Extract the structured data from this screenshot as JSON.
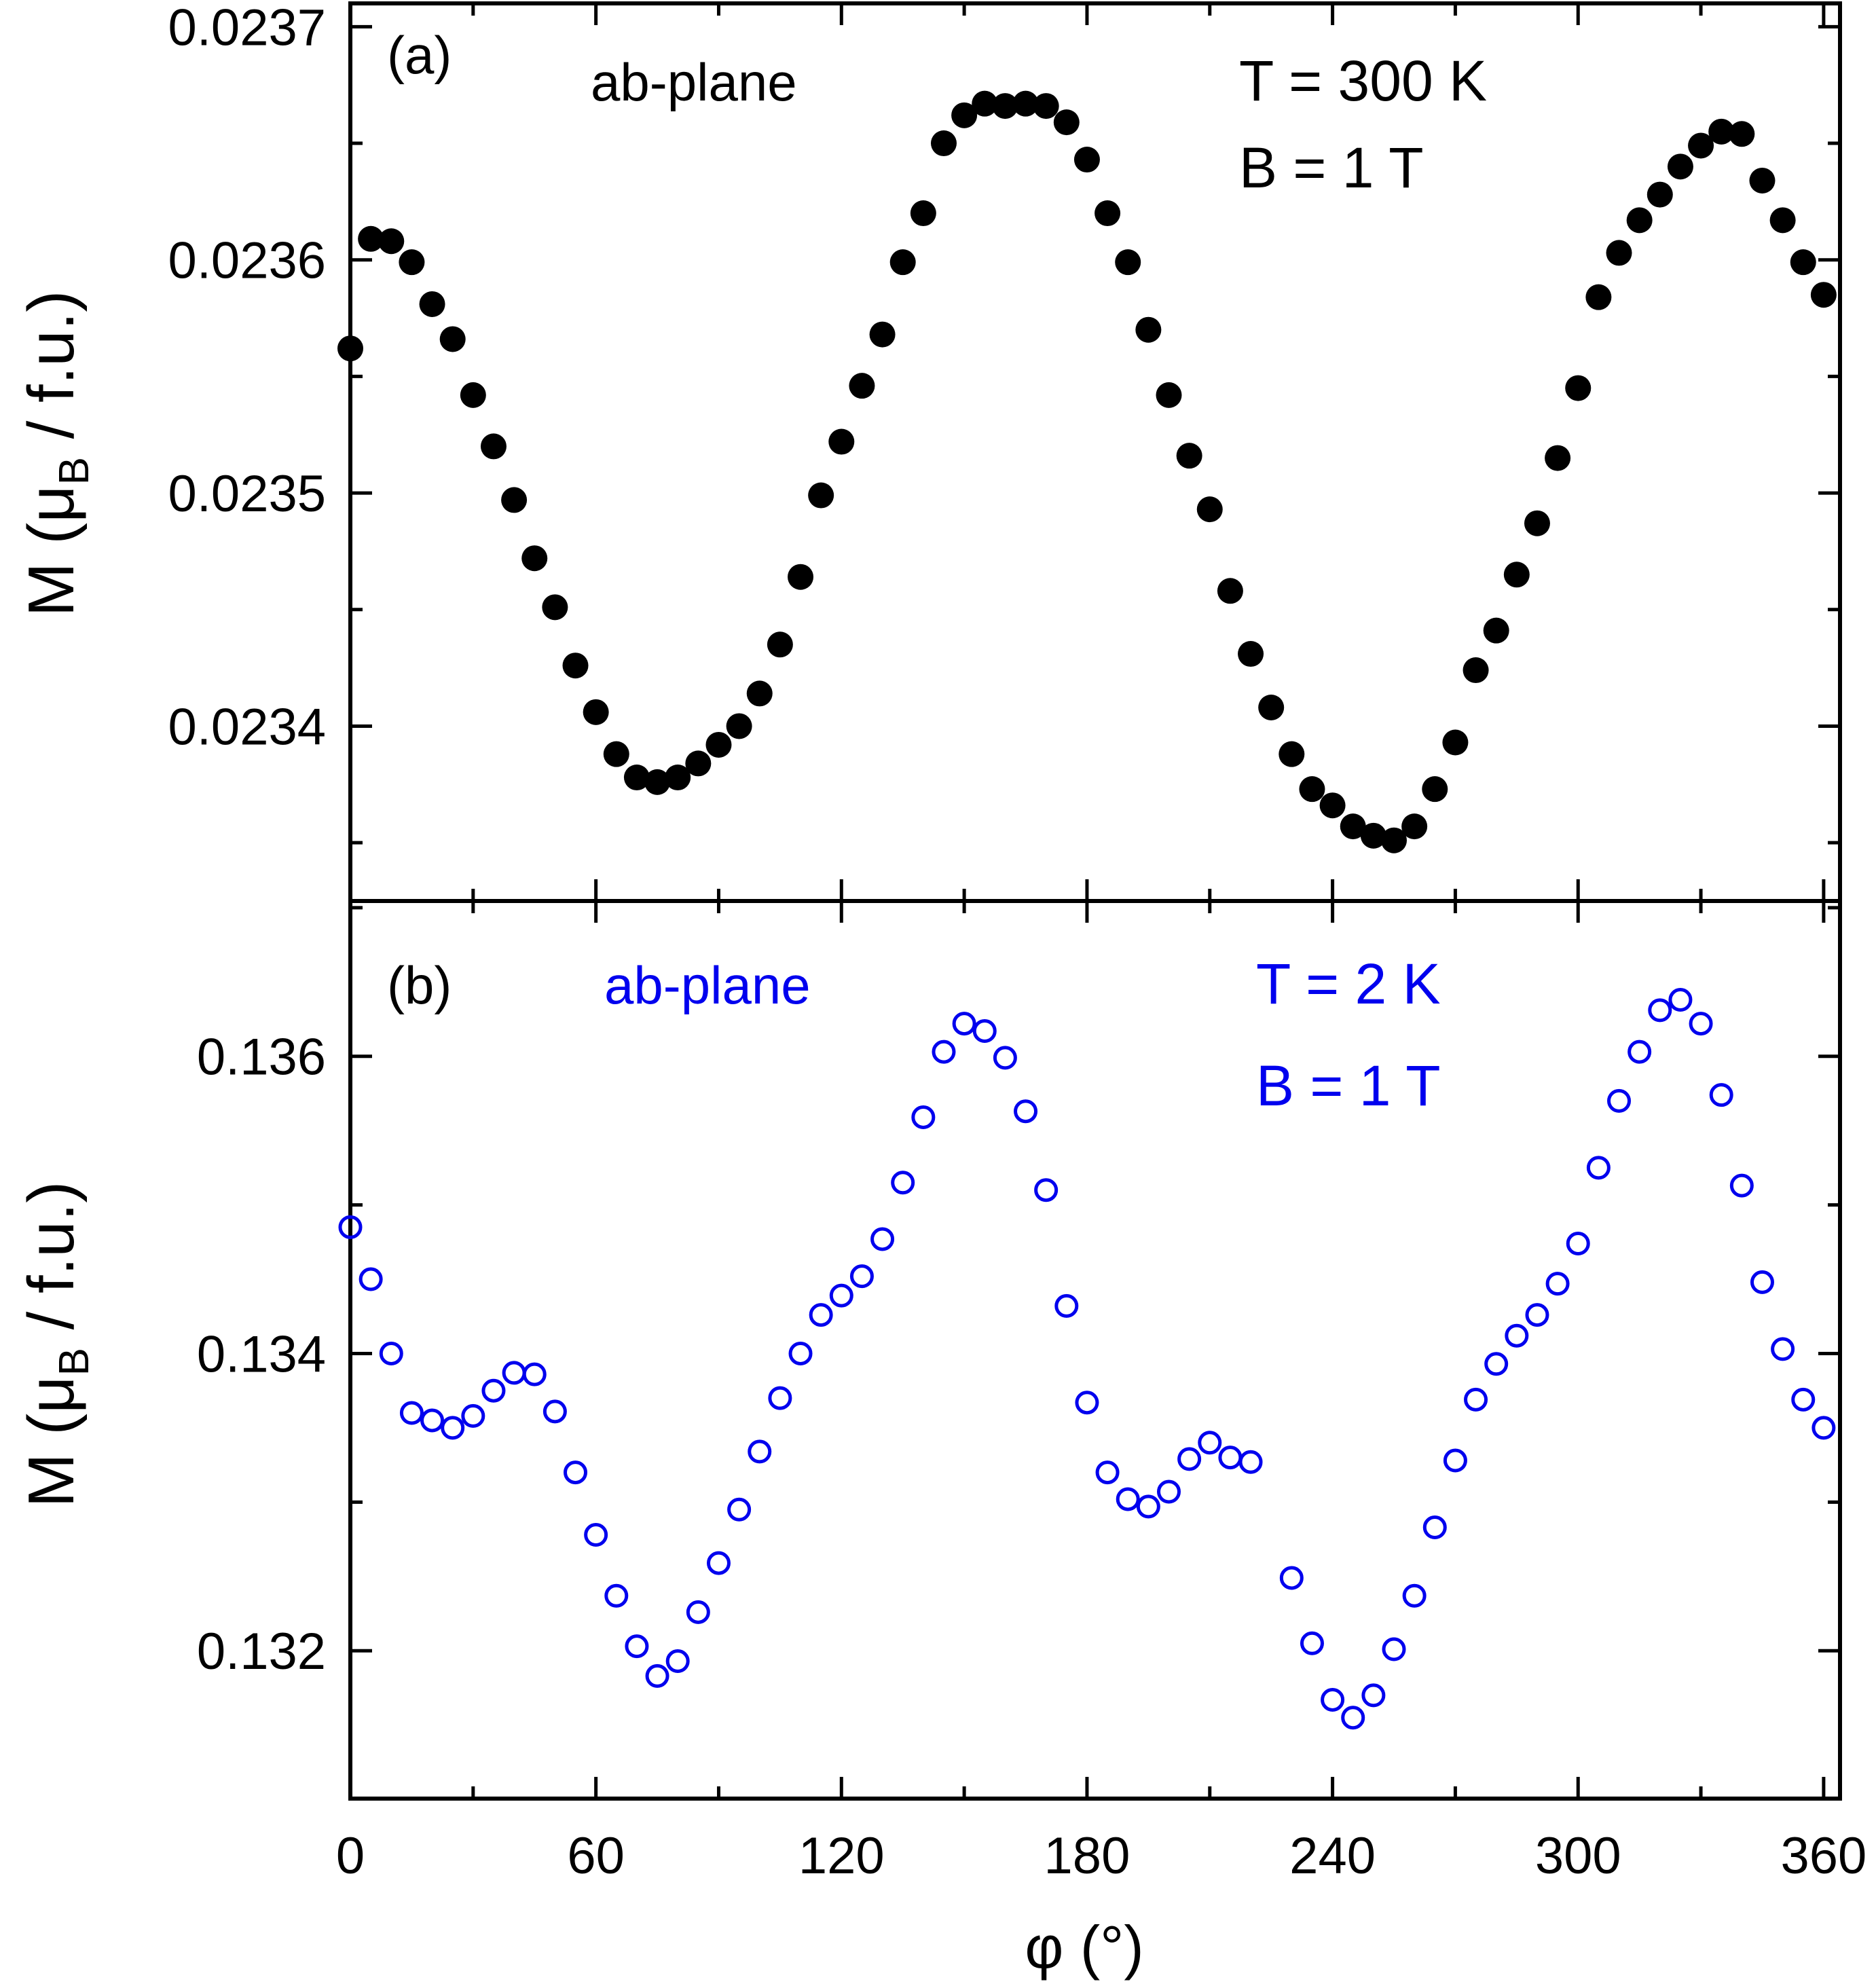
{
  "chart_data": [
    {
      "type": "scatter",
      "panel_label": "(a)",
      "annotation_plane": "ab-plane",
      "annotation_temperature": "T = 300 K",
      "annotation_field": "B = 1 T",
      "ylabel_main": "M (μ",
      "ylabel_sub": "B",
      "ylabel_end": " / f.u.)",
      "xlim": [
        0,
        364
      ],
      "ylim": [
        0.023325,
        0.02371
      ],
      "yticks": [
        0.0234,
        0.0235,
        0.0236,
        0.0237
      ],
      "ytick_labels": [
        "0.0234",
        "0.0235",
        "0.0236",
        "0.0237"
      ],
      "marker": "filled-circle",
      "color": "#000000",
      "series": [
        {
          "name": "T = 300 K",
          "x": [
            0,
            5,
            10,
            15,
            20,
            25,
            30,
            35,
            40,
            45,
            50,
            55,
            60,
            65,
            70,
            75,
            80,
            85,
            90,
            95,
            100,
            105,
            110,
            115,
            120,
            125,
            130,
            135,
            140,
            145,
            150,
            155,
            160,
            165,
            170,
            175,
            180,
            185,
            190,
            195,
            200,
            205,
            210,
            215,
            220,
            225,
            230,
            235,
            240,
            245,
            250,
            255,
            260,
            265,
            270,
            275,
            280,
            285,
            290,
            295,
            300,
            305,
            310,
            315,
            320,
            325,
            330,
            335,
            340,
            345,
            350,
            355,
            360
          ],
          "y": [
            0.023562,
            0.023609,
            0.023608,
            0.023599,
            0.023581,
            0.023566,
            0.023542,
            0.02352,
            0.023497,
            0.023472,
            0.023451,
            0.023426,
            0.023406,
            0.023388,
            0.023378,
            0.023376,
            0.023378,
            0.023384,
            0.023392,
            0.0234,
            0.023414,
            0.023435,
            0.023464,
            0.023499,
            0.023522,
            0.023546,
            0.023568,
            0.023599,
            0.02362,
            0.02365,
            0.023662,
            0.023667,
            0.023666,
            0.023667,
            0.023666,
            0.023659,
            0.023643,
            0.02362,
            0.023599,
            0.02357,
            0.023542,
            0.023516,
            0.023493,
            0.023458,
            0.023431,
            0.023408,
            0.023388,
            0.023373,
            0.023366,
            0.023357,
            0.023353,
            0.023351,
            0.023357,
            0.023373,
            0.023393,
            0.023424,
            0.023441,
            0.023465,
            0.023487,
            0.023515,
            0.023545,
            0.023584,
            0.023603,
            0.023617,
            0.023628,
            0.02364,
            0.023649,
            0.023655,
            0.023654,
            0.023634,
            0.023617,
            0.023599,
            0.023585
          ]
        }
      ]
    },
    {
      "type": "scatter",
      "panel_label": "(b)",
      "annotation_plane": "ab-plane",
      "annotation_temperature": "T = 2 K",
      "annotation_field": "B = 1 T",
      "ylabel_main": "M (μ",
      "ylabel_sub": "B",
      "ylabel_end": " / f.u.)",
      "xlabel": "φ (°)",
      "xlim": [
        0,
        364
      ],
      "ylim": [
        0.131005,
        0.137045
      ],
      "xticks": [
        0,
        60,
        120,
        180,
        240,
        300,
        360
      ],
      "xtick_labels": [
        "0",
        "60",
        "120",
        "180",
        "240",
        "300",
        "360"
      ],
      "yticks": [
        0.132,
        0.134,
        0.136
      ],
      "ytick_labels": [
        "0.132",
        "0.134",
        "0.136"
      ],
      "marker": "open-circle",
      "color": "#0000ee",
      "series": [
        {
          "name": "T = 2 K",
          "x": [
            0,
            5,
            10,
            15,
            20,
            25,
            30,
            35,
            40,
            45,
            50,
            55,
            60,
            65,
            70,
            75,
            80,
            85,
            90,
            95,
            100,
            105,
            110,
            115,
            120,
            125,
            130,
            135,
            140,
            145,
            150,
            155,
            160,
            165,
            170,
            175,
            180,
            185,
            190,
            195,
            200,
            205,
            210,
            215,
            220,
            230,
            235,
            240,
            245,
            250,
            255,
            260,
            265,
            270,
            275,
            280,
            285,
            290,
            295,
            300,
            305,
            310,
            315,
            320,
            325,
            330,
            335,
            340,
            345,
            350,
            355,
            360
          ],
          "y": [
            0.13485,
            0.1345,
            0.134,
            0.1336,
            0.13355,
            0.1335,
            0.13358,
            0.13375,
            0.13387,
            0.13386,
            0.13361,
            0.1332,
            0.13278,
            0.13237,
            0.13203,
            0.13183,
            0.13193,
            0.13226,
            0.13259,
            0.13295,
            0.13334,
            0.1337,
            0.134,
            0.13426,
            0.13439,
            0.13452,
            0.13477,
            0.13515,
            0.13559,
            0.13603,
            0.13622,
            0.13617,
            0.13599,
            0.13563,
            0.1351,
            0.13432,
            0.13367,
            0.1332,
            0.13302,
            0.13297,
            0.13307,
            0.13329,
            0.1334,
            0.1333,
            0.13327,
            0.13249,
            0.13205,
            0.13167,
            0.13155,
            0.1317,
            0.13201,
            0.13237,
            0.13283,
            0.13328,
            0.13369,
            0.13393,
            0.13412,
            0.13426,
            0.13447,
            0.13474,
            0.13525,
            0.1357,
            0.13603,
            0.13631,
            0.13638,
            0.13622,
            0.13574,
            0.13513,
            0.13448,
            0.13403,
            0.13369,
            0.1335
          ]
        }
      ]
    }
  ]
}
